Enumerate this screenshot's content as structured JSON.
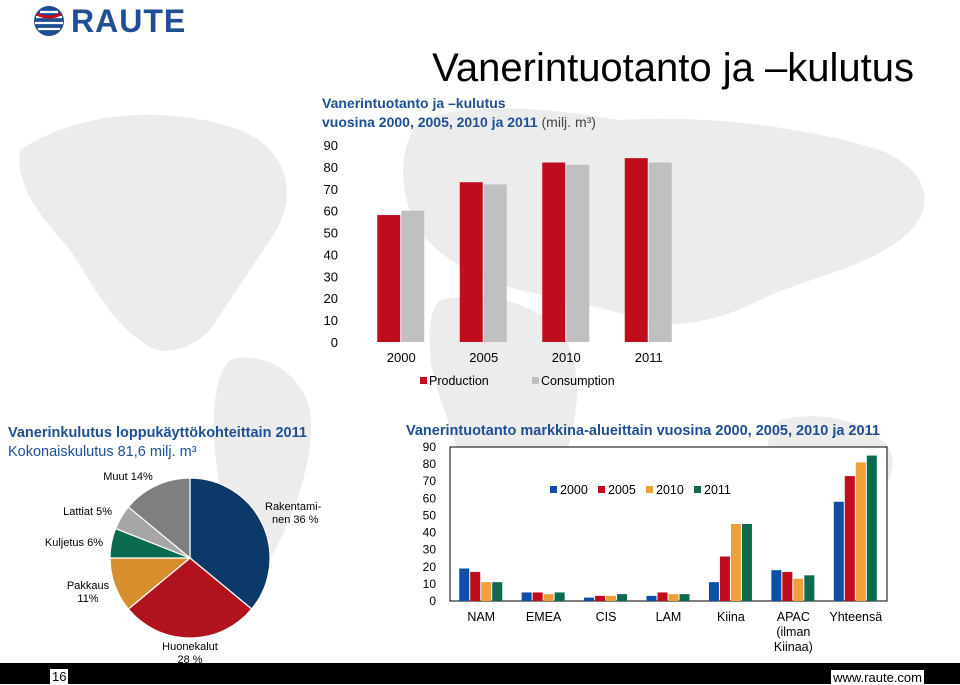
{
  "brand": {
    "name": "RAUTE"
  },
  "slide": {
    "title": "Vanerintuotanto ja –kulutus",
    "page_number": "16",
    "website": "www.raute.com"
  },
  "colors": {
    "red": "#c00d1e",
    "gray": "#c0c0c0",
    "navy": "#0b3a6a",
    "brand": "#1f4e94"
  },
  "chart_data": [
    {
      "type": "bar",
      "title_line1": "Vanerintuotanto ja –kulutus",
      "title_line2": "vuosina 2000, 2005, 2010 ja 2011",
      "title_unit": "(milj. m³)",
      "categories": [
        "2000",
        "2005",
        "2010",
        "2011"
      ],
      "series": [
        {
          "name": "Production",
          "values": [
            58,
            73,
            82,
            84
          ],
          "color": "#c00d1e"
        },
        {
          "name": "Consumption",
          "values": [
            60,
            72,
            81,
            82
          ],
          "color": "#c0c0c0"
        }
      ],
      "ylim": [
        0,
        90
      ],
      "yticks": [
        "0",
        "10",
        "20",
        "30",
        "40",
        "50",
        "60",
        "70",
        "80",
        "90"
      ],
      "legend": "bottom"
    },
    {
      "type": "pie",
      "title": "Vanerinkulutus loppukäyttökohteittain 2011",
      "subtitle": "Kokonaiskulutus 81,6 milj. m³",
      "slices": [
        {
          "label_line1": "Rakentami-",
          "label_line2": "nen 36 %",
          "value": 36,
          "color": "#0b3a6a"
        },
        {
          "label_line1": "Huonekalut",
          "label_line2": "28 %",
          "value": 28,
          "color": "#b0131d"
        },
        {
          "label_line1": "Pakkaus",
          "label_line2": "11%",
          "value": 11,
          "color": "#d98e2e"
        },
        {
          "label_line1": "Kuljetus 6%",
          "label_line2": "",
          "value": 6,
          "color": "#0a6b50"
        },
        {
          "label_line1": "Lattiat 5%",
          "label_line2": "",
          "value": 5,
          "color": "#a6a6a6"
        },
        {
          "label_line1": "Muut 14%",
          "label_line2": "",
          "value": 14,
          "color": "#7f7f7f"
        }
      ]
    },
    {
      "type": "bar",
      "title": "Vanerintuotanto markkina-alueittain vuosina 2000, 2005, 2010 ja 2011",
      "categories": [
        [
          "NAM"
        ],
        [
          "EMEA"
        ],
        [
          "CIS"
        ],
        [
          "LAM"
        ],
        [
          "Kiina"
        ],
        [
          "APAC",
          "(ilman",
          "Kiinaa)"
        ],
        [
          "Yhteensä"
        ]
      ],
      "series": [
        {
          "name": "2000",
          "values": [
            19,
            5,
            2,
            3,
            11,
            18,
            58
          ],
          "color": "#0b4fa8"
        },
        {
          "name": "2005",
          "values": [
            17,
            5,
            3,
            5,
            26,
            17,
            73
          ],
          "color": "#c00d1e"
        },
        {
          "name": "2010",
          "values": [
            11,
            4,
            3,
            4,
            45,
            13,
            81
          ],
          "color": "#f0a03a"
        },
        {
          "name": "2011",
          "values": [
            11,
            5,
            4,
            4,
            45,
            15,
            85
          ],
          "color": "#0a6b50"
        }
      ],
      "ylim": [
        0,
        90
      ],
      "yticks": [
        "0",
        "10",
        "20",
        "30",
        "40",
        "50",
        "60",
        "70",
        "80",
        "90"
      ],
      "legend": "top-right"
    }
  ]
}
